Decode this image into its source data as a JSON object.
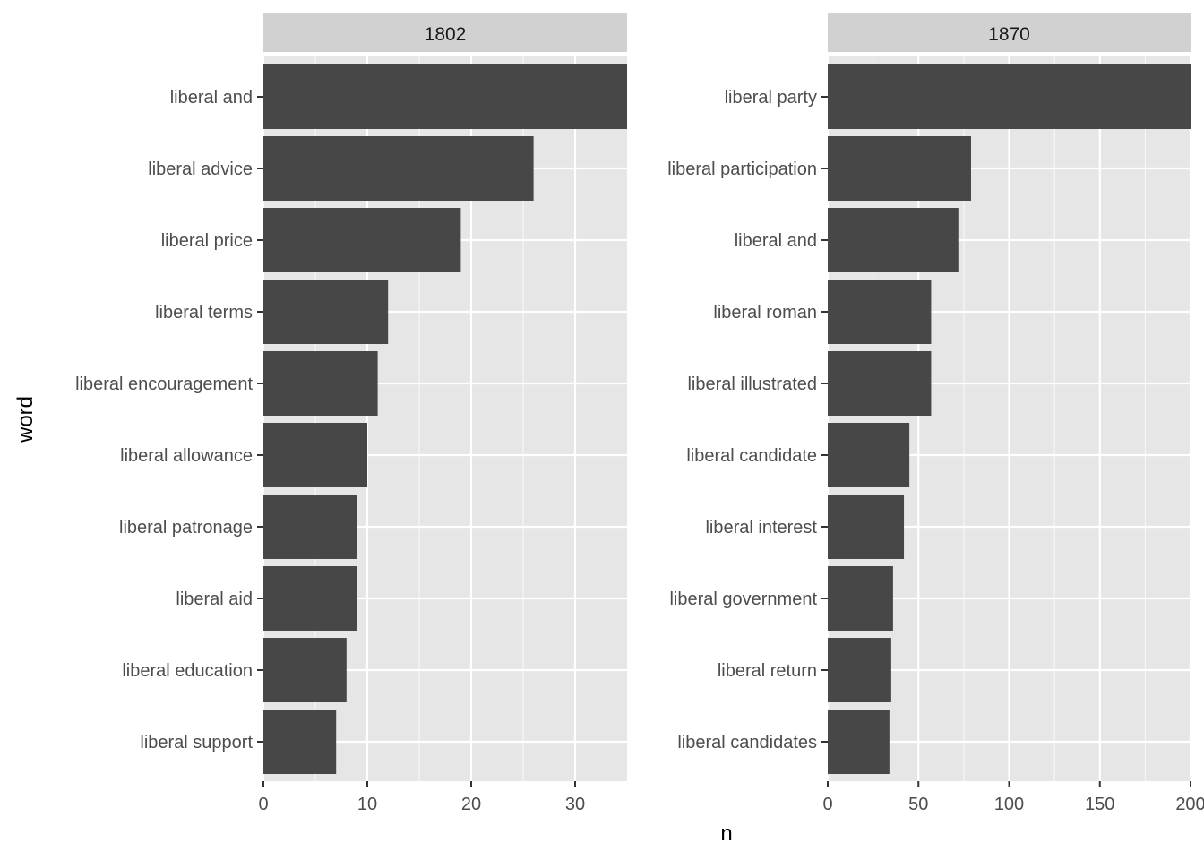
{
  "chart_data": {
    "type": "bar",
    "orientation": "horizontal",
    "xlabel": "n",
    "ylabel": "word",
    "grid": true,
    "legend": "none",
    "colors": {
      "bar": "#474747",
      "panel_background": "#e6e6e6",
      "grid_line": "#ffffff",
      "strip_background": "#d1d1d1"
    },
    "facets": [
      {
        "name": "1802",
        "categories": [
          "liberal and",
          "liberal advice",
          "liberal price",
          "liberal terms",
          "liberal encouragement",
          "liberal allowance",
          "liberal patronage",
          "liberal aid",
          "liberal education",
          "liberal support"
        ],
        "values": [
          35,
          26,
          19,
          12,
          11,
          10,
          9,
          9,
          8,
          7
        ],
        "xlim": [
          0,
          35
        ],
        "ticks": [
          0,
          10,
          20,
          30
        ],
        "tick_labels": [
          "0",
          "10",
          "20",
          "30"
        ]
      },
      {
        "name": "1870",
        "categories": [
          "liberal party",
          "liberal participation",
          "liberal and",
          "liberal roman",
          "liberal illustrated",
          "liberal candidate",
          "liberal interest",
          "liberal government",
          "liberal return",
          "liberal candidates"
        ],
        "values": [
          200,
          79,
          72,
          57,
          57,
          45,
          42,
          36,
          35,
          34
        ],
        "xlim": [
          0,
          200
        ],
        "ticks": [
          0,
          50,
          100,
          150,
          200
        ],
        "tick_labels": [
          "0",
          "50",
          "100",
          "150",
          "200"
        ]
      }
    ]
  }
}
